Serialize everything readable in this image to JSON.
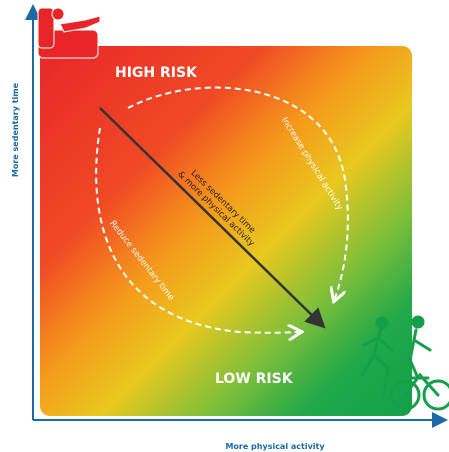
{
  "y_axis_label": "More sedentary time",
  "x_axis_label": "More physical activity",
  "zones": {
    "high": "HIGH RISK",
    "low": "LOW RISK"
  },
  "arrows": {
    "increase": "Increase physical activity",
    "reduce": "Reduce sedentary time",
    "diagonal": [
      "Less sedentary time",
      "& more physical activity"
    ]
  }
}
